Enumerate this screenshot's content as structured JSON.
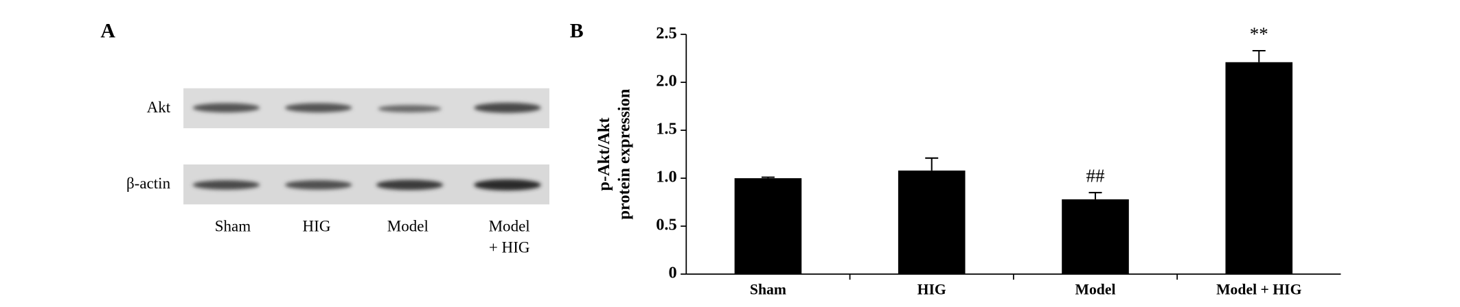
{
  "panel_a": {
    "label": "A",
    "rows": [
      "Akt",
      "β-actin"
    ],
    "lanes": [
      [
        "Sham"
      ],
      [
        "HIG"
      ],
      [
        "Model"
      ],
      [
        "Model",
        "+ HIG"
      ]
    ]
  },
  "chart_data": {
    "type": "bar",
    "panel_label": "B",
    "y_label": [
      "p-Akt/Akt",
      "protein expression"
    ],
    "categories": [
      "Sham",
      "HIG",
      "Model",
      "Model + HIG"
    ],
    "values": [
      1.0,
      1.08,
      0.78,
      2.21
    ],
    "errors": [
      0.01,
      0.13,
      0.07,
      0.12
    ],
    "color": "#000000",
    "annotations": [
      {
        "text": "##",
        "category": "Model"
      },
      {
        "text": "**",
        "category": "Model + HIG"
      }
    ],
    "ylim": [
      0,
      2.5
    ],
    "yticks": [
      0,
      0.5,
      {
        "value": 1,
        "label": "1.0"
      },
      1.5,
      {
        "value": 2,
        "label": "2.0"
      },
      2.5
    ]
  }
}
